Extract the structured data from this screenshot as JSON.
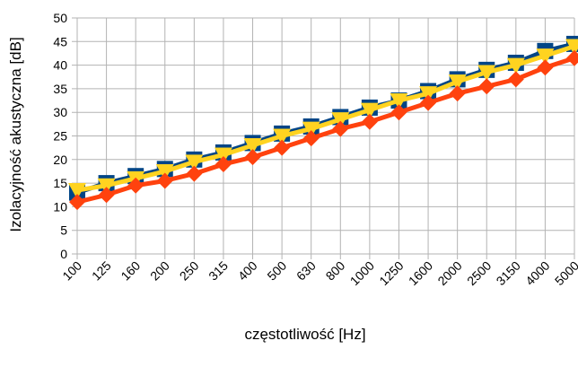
{
  "chart_data": {
    "type": "line",
    "xlabel": "częstotliwość [Hz]",
    "ylabel": "Izolacyjność akustyczna [dB]",
    "ylim": [
      0,
      50
    ],
    "ytick_step": 5,
    "grid": true,
    "categories": [
      "100",
      "125",
      "160",
      "200",
      "250",
      "315",
      "400",
      "500",
      "630",
      "800",
      "1000",
      "1250",
      "1600",
      "2000",
      "2500",
      "3150",
      "4000",
      "5000"
    ],
    "series": [
      {
        "color": "#004586",
        "marker": "square",
        "values": [
          13,
          15,
          16.5,
          18,
          20,
          21.5,
          23.5,
          25.5,
          27,
          29,
          31,
          32.5,
          34.5,
          37,
          39,
          40.5,
          43,
          44.5
        ]
      },
      {
        "color": "#ffd320",
        "marker": "triangle-down",
        "values": [
          13.5,
          14.5,
          16,
          17.5,
          19.5,
          21,
          23,
          25,
          26.5,
          28.5,
          30.5,
          32.5,
          34,
          36.5,
          38.5,
          40,
          42,
          44
        ]
      },
      {
        "color": "#ff420e",
        "marker": "diamond",
        "values": [
          11,
          12.5,
          14.5,
          15.5,
          17,
          19,
          20.5,
          22.5,
          24.5,
          26.5,
          28,
          30,
          32,
          34,
          35.5,
          37,
          39.5,
          41.5
        ]
      }
    ]
  }
}
